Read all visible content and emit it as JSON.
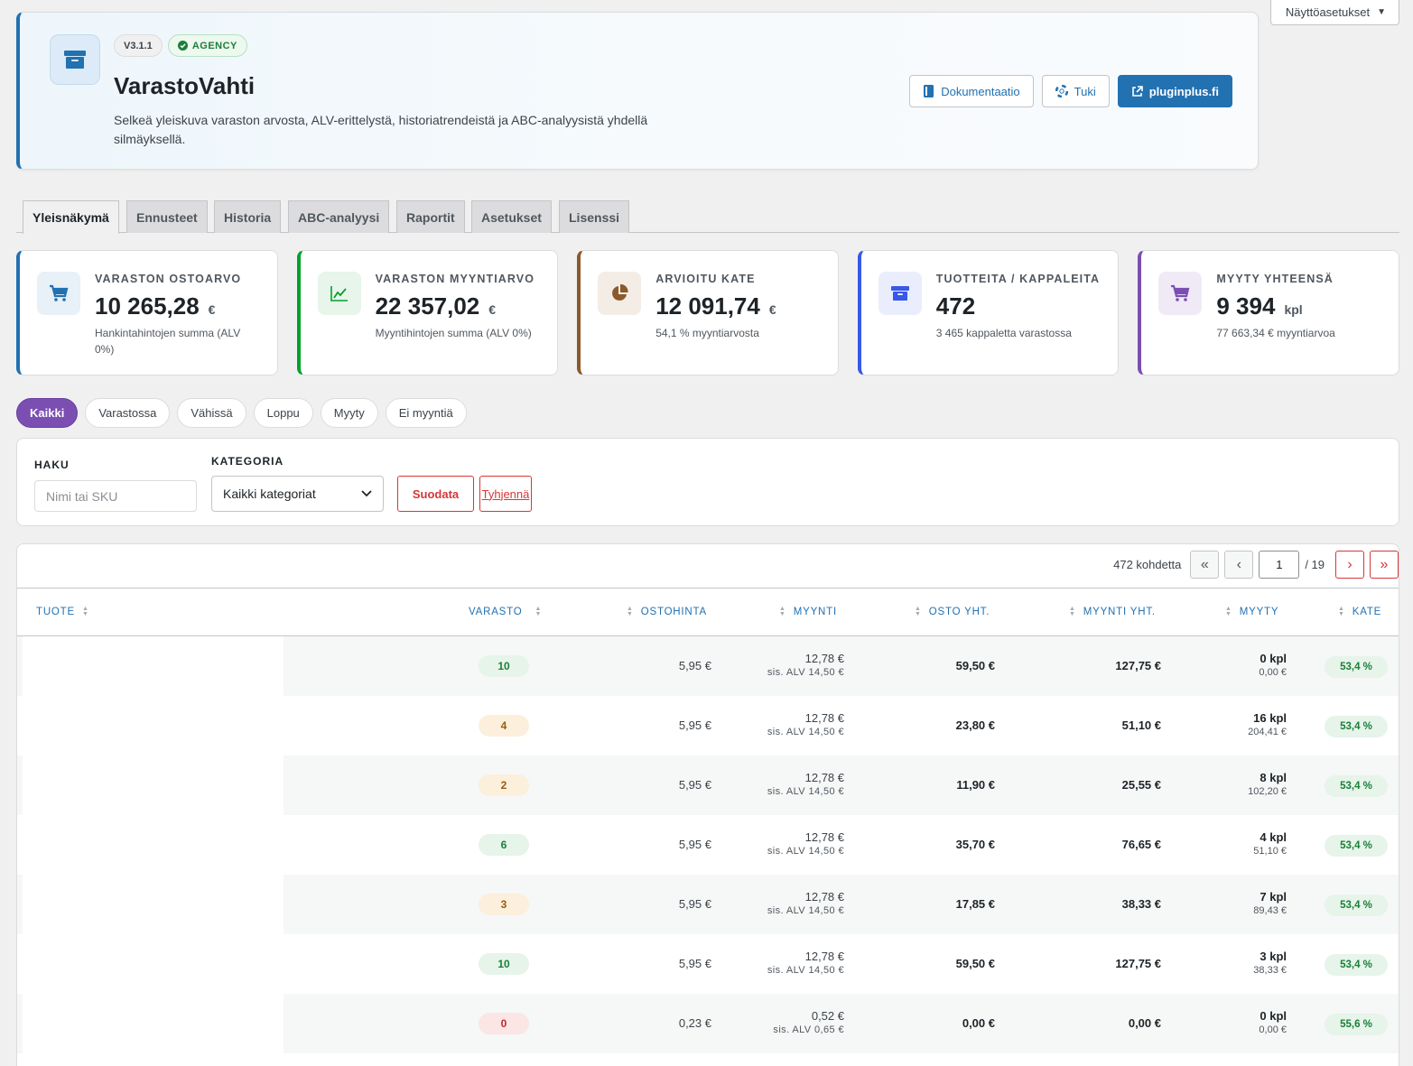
{
  "screen_options": {
    "label": "Näyttöasetukset"
  },
  "header": {
    "version": "V3.1.1",
    "plan": "AGENCY",
    "title": "VarastoVahti",
    "description": "Selkeä yleiskuva varaston arvosta, ALV-erittelystä, historiatrendeistä ja ABC-analyysistä yhdellä silmäyksellä.",
    "actions": {
      "docs": "Dokumentaatio",
      "support": "Tuki",
      "site": "pluginplus.fi"
    }
  },
  "tabs": [
    "Yleisnäkymä",
    "Ennusteet",
    "Historia",
    "ABC-analyysi",
    "Raportit",
    "Asetukset",
    "Lisenssi"
  ],
  "cards": [
    {
      "label": "VARASTON OSTOARVO",
      "value": "10 265,28",
      "unit": "€",
      "sub": "Hankintahintojen summa (ALV 0%)",
      "accent": "#2271b1",
      "icon": "cart-icon"
    },
    {
      "label": "VARASTON MYYNTIARVO",
      "value": "22 357,02",
      "unit": "€",
      "sub": "Myyntihintojen summa (ALV 0%)",
      "accent": "#00a32a",
      "icon": "trend-icon"
    },
    {
      "label": "ARVIOITU KATE",
      "value": "12 091,74",
      "unit": "€",
      "sub": "54,1 % myyntiarvosta",
      "accent": "#8a5a2b",
      "icon": "pie-chart-icon"
    },
    {
      "label": "TUOTTEITA / KAPPALEITA",
      "value": "472",
      "unit": "",
      "sub": "3 465 kappaletta varastossa",
      "accent": "#3858e9",
      "icon": "archive-icon"
    },
    {
      "label": "MYYTY YHTEENSÄ",
      "value": "9 394",
      "unit": "kpl",
      "sub": "77 663,34 € myyntiarvoa",
      "accent": "#7b4fb2",
      "icon": "cart-icon"
    }
  ],
  "status_filters": [
    "Kaikki",
    "Varastossa",
    "Vähissä",
    "Loppu",
    "Myyty",
    "Ei myyntiä"
  ],
  "search": {
    "search_label": "HAKU",
    "search_placeholder": "Nimi tai SKU",
    "category_label": "KATEGORIA",
    "category_value": "Kaikki kategoriat",
    "filter_button": "Suodata",
    "clear_button": "Tyhjennä"
  },
  "pagination": {
    "count": "472 kohdetta",
    "current_page": "1",
    "total": "/ 19"
  },
  "columns": {
    "tuote": "TUOTE",
    "varasto": "VARASTO",
    "ostohinta": "OSTOHINTA",
    "myynti": "MYYNTI",
    "osto_yht": "OSTO YHT.",
    "myynti_yht": "MYYNTI YHT.",
    "myyty": "MYYTY",
    "kate": "KATE"
  },
  "rows": [
    {
      "stock": "10",
      "stock_level": "ok",
      "ostohinta": "5,95 €",
      "myynti": "12,78 €",
      "myynti_vat": "sis. ALV 14,50 €",
      "osto_yht": "59,50 €",
      "myynti_yht": "127,75 €",
      "myyty": "0 kpl",
      "myyty_value": "0,00 €",
      "kate": "53,4 %"
    },
    {
      "stock": "4",
      "stock_level": "low",
      "ostohinta": "5,95 €",
      "myynti": "12,78 €",
      "myynti_vat": "sis. ALV 14,50 €",
      "osto_yht": "23,80 €",
      "myynti_yht": "51,10 €",
      "myyty": "16 kpl",
      "myyty_value": "204,41 €",
      "kate": "53,4 %"
    },
    {
      "stock": "2",
      "stock_level": "low",
      "ostohinta": "5,95 €",
      "myynti": "12,78 €",
      "myynti_vat": "sis. ALV 14,50 €",
      "osto_yht": "11,90 €",
      "myynti_yht": "25,55 €",
      "myyty": "8 kpl",
      "myyty_value": "102,20 €",
      "kate": "53,4 %"
    },
    {
      "stock": "6",
      "stock_level": "ok",
      "ostohinta": "5,95 €",
      "myynti": "12,78 €",
      "myynti_vat": "sis. ALV 14,50 €",
      "osto_yht": "35,70 €",
      "myynti_yht": "76,65 €",
      "myyty": "4 kpl",
      "myyty_value": "51,10 €",
      "kate": "53,4 %"
    },
    {
      "stock": "3",
      "stock_level": "low",
      "ostohinta": "5,95 €",
      "myynti": "12,78 €",
      "myynti_vat": "sis. ALV 14,50 €",
      "osto_yht": "17,85 €",
      "myynti_yht": "38,33 €",
      "myyty": "7 kpl",
      "myyty_value": "89,43 €",
      "kate": "53,4 %"
    },
    {
      "stock": "10",
      "stock_level": "ok",
      "ostohinta": "5,95 €",
      "myynti": "12,78 €",
      "myynti_vat": "sis. ALV 14,50 €",
      "osto_yht": "59,50 €",
      "myynti_yht": "127,75 €",
      "myyty": "3 kpl",
      "myyty_value": "38,33 €",
      "kate": "53,4 %"
    },
    {
      "stock": "0",
      "stock_level": "out",
      "ostohinta": "0,23 €",
      "myynti": "0,52 €",
      "myynti_vat": "sis. ALV 0,65 €",
      "osto_yht": "0,00 €",
      "myynti_yht": "0,00 €",
      "myyty": "0 kpl",
      "myyty_value": "0,00 €",
      "kate": "55,6 %"
    }
  ]
}
